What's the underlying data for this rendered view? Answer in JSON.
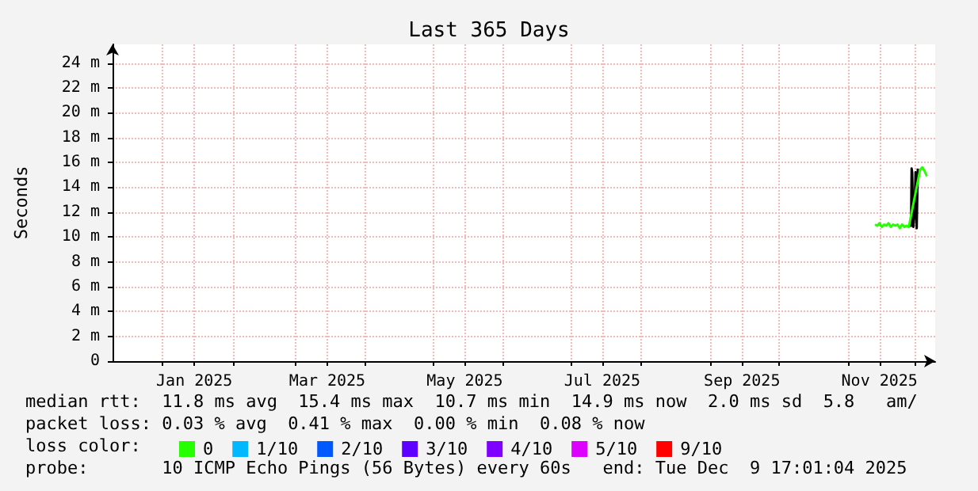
{
  "chart_data": {
    "type": "line",
    "title": "Last 365 Days",
    "ylabel": "Seconds",
    "xlim": [
      "2024-12-09T17:01",
      "2025-12-09T17:01"
    ],
    "xticks": [
      {
        "value": "2025-01-01",
        "label": null
      },
      {
        "value": "2025-01-15",
        "label": "Jan 2025"
      },
      {
        "value": "2025-02-01",
        "label": null
      },
      {
        "value": "2025-03-01",
        "label": null
      },
      {
        "value": "2025-03-15",
        "label": "Mar 2025"
      },
      {
        "value": "2025-04-01",
        "label": null
      },
      {
        "value": "2025-05-01",
        "label": null
      },
      {
        "value": "2025-05-15",
        "label": "May 2025"
      },
      {
        "value": "2025-06-01",
        "label": null
      },
      {
        "value": "2025-07-01",
        "label": null
      },
      {
        "value": "2025-07-15",
        "label": "Jul 2025"
      },
      {
        "value": "2025-08-01",
        "label": null
      },
      {
        "value": "2025-09-01",
        "label": null
      },
      {
        "value": "2025-09-15",
        "label": "Sep 2025"
      },
      {
        "value": "2025-10-01",
        "label": null
      },
      {
        "value": "2025-11-01",
        "label": null
      },
      {
        "value": "2025-11-15",
        "label": "Nov 2025"
      },
      {
        "value": "2025-12-01",
        "label": null
      }
    ],
    "ylim": [
      0,
      25.5
    ],
    "yticks": [
      0,
      {
        "value": 2,
        "label": "2 m"
      },
      {
        "value": 4,
        "label": "4 m"
      },
      {
        "value": 6,
        "label": "6 m"
      },
      {
        "value": 8,
        "label": "8 m"
      },
      {
        "value": 10,
        "label": "10 m"
      },
      {
        "value": 12,
        "label": "12 m"
      },
      {
        "value": 14,
        "label": "14 m"
      },
      {
        "value": 16,
        "label": "16 m"
      },
      {
        "value": 18,
        "label": "18 m"
      },
      {
        "value": 20,
        "label": "20 m"
      },
      {
        "value": 22,
        "label": "22 m"
      },
      {
        "value": 24,
        "label": "24 m"
      }
    ],
    "grid": true,
    "legend": "bottom left",
    "legend_title": "loss color:",
    "series": [
      {
        "color": "#000000",
        "x": [
          "2025-11-29T00:00",
          "2025-11-29T06:00",
          "2025-11-29T12:00",
          "2025-11-30T00:00",
          "2025-11-30T12:00",
          "2025-12-01T00:00",
          "2025-12-01T12:00",
          "2025-12-02T00:00"
        ],
        "values": [
          10.8,
          15.5,
          15.2,
          10.8,
          11.8,
          15.2,
          10.7,
          15.5
        ]
      },
      {
        "name": "0",
        "color": "#26ff00",
        "x": [
          "2025-11-13",
          "2025-11-14",
          "2025-11-15",
          "2025-11-16",
          "2025-11-17",
          "2025-11-18",
          "2025-11-19",
          "2025-11-20",
          "2025-11-21",
          "2025-11-22",
          "2025-11-23",
          "2025-11-24",
          "2025-11-25",
          "2025-11-26",
          "2025-11-27",
          "2025-11-28",
          "2025-12-03",
          "2025-12-04",
          "2025-12-05",
          "2025-12-06"
        ],
        "values": [
          11.0,
          10.9,
          11.1,
          10.8,
          11.0,
          10.9,
          11.1,
          10.8,
          11.0,
          10.9,
          11.0,
          10.7,
          11.0,
          10.8,
          10.9,
          10.8,
          15.4,
          15.6,
          15.3,
          14.9
        ]
      },
      {
        "name": "1/10",
        "color": "#00b8ff"
      },
      {
        "name": "2/10",
        "color": "#0059ff"
      },
      {
        "name": "3/10",
        "color": "#5e00ff"
      },
      {
        "name": "4/10",
        "color": "#7e00ff"
      },
      {
        "name": "5/10",
        "color": "#dd00ff"
      },
      {
        "name": "9/10",
        "color": "#ff0000"
      }
    ],
    "annotations": [
      "median rtt:  11.8 ms avg  15.4 ms max  10.7 ms min  14.9 ms now  2.0 ms sd  5.8   am/",
      "packet loss: 0.03 % avg  0.41 % max  0.00 % min  0.08 % now",
      "probe:       10 ICMP Echo Pings (56 Bytes) every 60s   end: Tue Dec  9 17:01:04 2025"
    ]
  }
}
